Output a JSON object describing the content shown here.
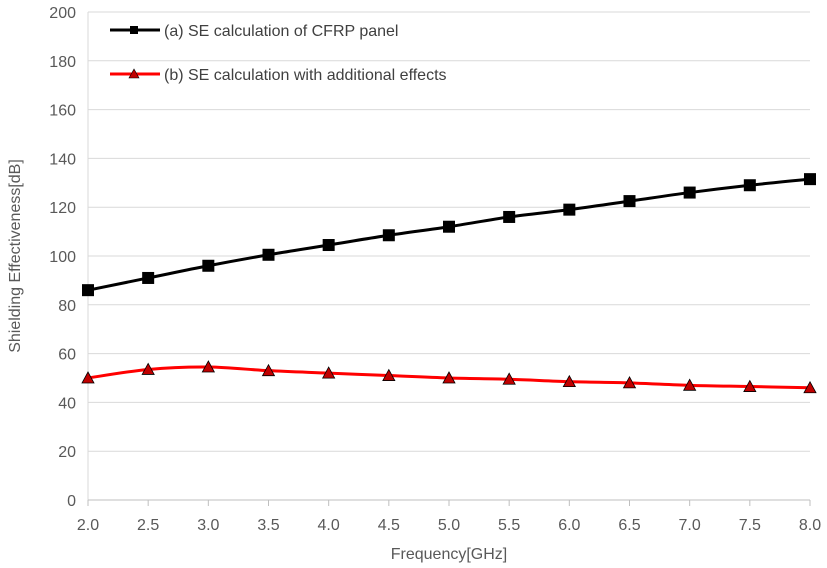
{
  "chart_data": {
    "type": "line",
    "title": "",
    "xlabel": "Frequency[GHz]",
    "ylabel": "Shielding Effectiveness[dB]",
    "x": [
      2.0,
      2.5,
      3.0,
      3.5,
      4.0,
      4.5,
      5.0,
      5.5,
      6.0,
      6.5,
      7.0,
      7.5,
      8.0
    ],
    "x_tick_labels": [
      "2.0",
      "2.5",
      "3.0",
      "3.5",
      "4.0",
      "4.5",
      "5.0",
      "5.5",
      "6.0",
      "6.5",
      "7.0",
      "7.5",
      "8.0"
    ],
    "y_ticks": [
      0,
      20,
      40,
      60,
      80,
      100,
      120,
      140,
      160,
      180,
      200
    ],
    "xlim": [
      2.0,
      8.0
    ],
    "ylim": [
      0,
      200
    ],
    "grid": "horizontal",
    "legend_position": "top-left",
    "series": [
      {
        "name": "(a) SE calculation of CFRP panel",
        "color": "#000000",
        "marker": "square",
        "values": [
          86,
          91,
          96,
          100.5,
          104.5,
          108.5,
          112,
          116,
          119,
          122.5,
          126,
          129,
          131.5
        ]
      },
      {
        "name": "(b) SE calculation with additional effects",
        "color": "#ff0000",
        "marker_fill": "#c00000",
        "marker": "triangle",
        "values": [
          50,
          53.5,
          54.5,
          53,
          52,
          51,
          50,
          49.5,
          48.5,
          48,
          47,
          46.5,
          46
        ]
      }
    ]
  }
}
